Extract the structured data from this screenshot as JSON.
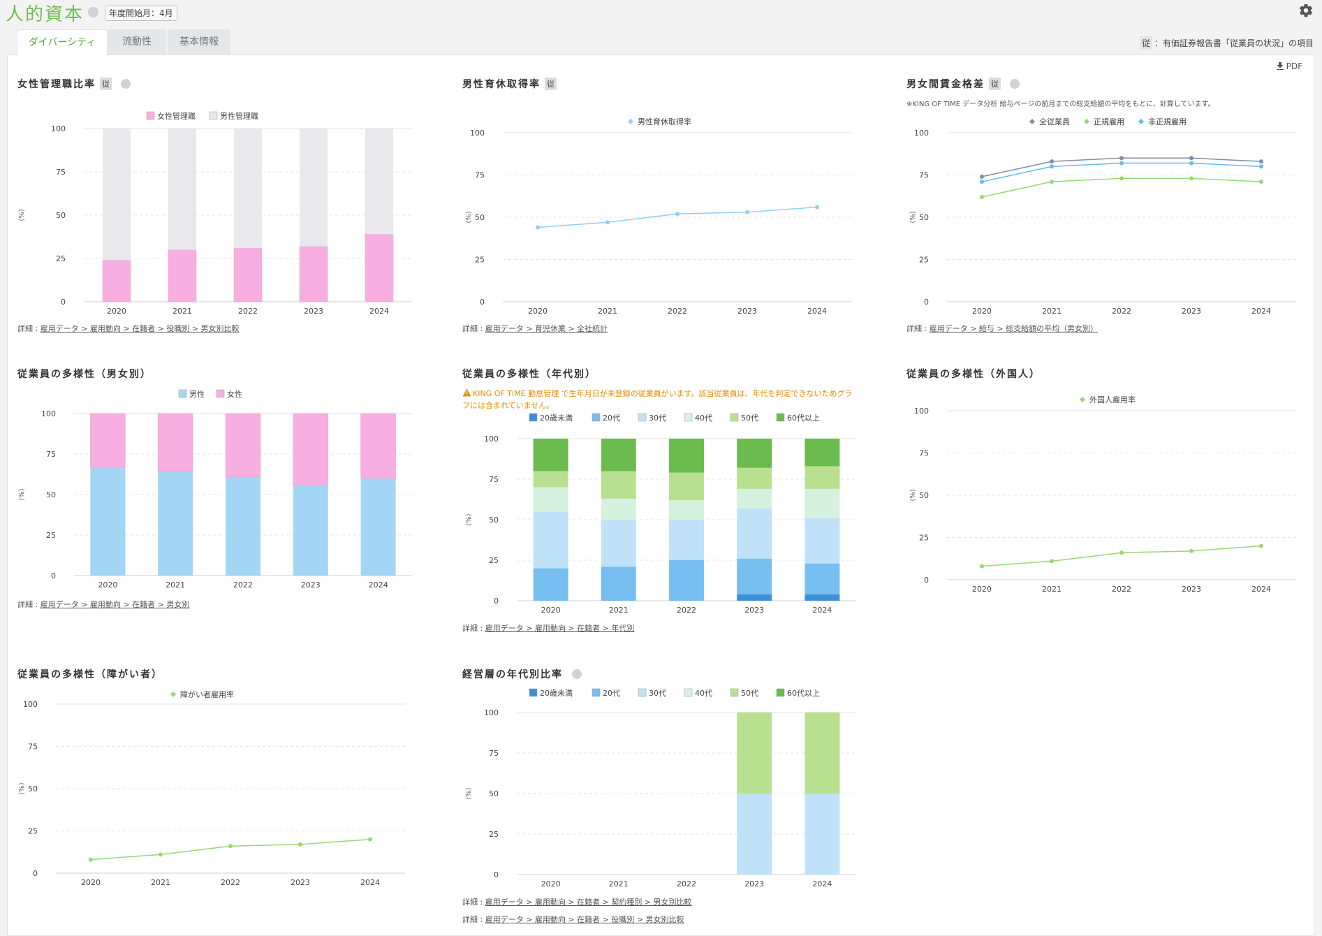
{
  "app": {
    "title": "人的資本",
    "fiscal_start": "年度開始月：4月"
  },
  "tabs": [
    {
      "label": "ダイバーシティ",
      "active": true
    },
    {
      "label": "流動性",
      "active": false
    },
    {
      "label": "基本情報",
      "active": false
    }
  ],
  "legend_note": {
    "tag": "従",
    "text": "：有価証券報告書「従業員の状況」の項目"
  },
  "pdf_label": "PDF",
  "tag_ju": "従",
  "warning_text": "KING OF TIME 勤怠管理 で生年月日が未登録の従業員がいます。該当従業員は、年代を判定できないためグラフには含まれていません。",
  "wage_note": "※KING OF TIME データ分析 給与ページの前月までの総支給額の平均をもとに、計算しています。",
  "details": {
    "d1": {
      "prefix": "詳細 : ",
      "link": "雇用データ > 雇用動向 > 在籍者 > 役職別 > 男女別比較"
    },
    "d2": {
      "prefix": "詳細 : ",
      "link": "雇用データ > 育児休業 > 全社統計"
    },
    "d3": {
      "prefix": "詳細 : ",
      "link": "雇用データ > 給与 > 総支給額の平均（男女別）"
    },
    "d4": {
      "prefix": "詳細 : ",
      "link": "雇用データ > 雇用動向 > 在籍者 > 男女別"
    },
    "d5": {
      "prefix": "詳細 : ",
      "link": "雇用データ > 雇用動向 > 在籍者 > 年代別"
    },
    "d8a": {
      "prefix": "詳細 : ",
      "link": "雇用データ > 雇用動向 > 在籍者 > 契約種別 > 男女別比較"
    },
    "d8b": {
      "prefix": "詳細 : ",
      "link": "雇用データ > 雇用動向 > 在籍者 > 役職別 > 男女別比較"
    }
  },
  "chart_data": [
    {
      "id": "c1",
      "type": "bar",
      "stacked": true,
      "title": "女性管理職比率",
      "categories": [
        "2020",
        "2021",
        "2022",
        "2023",
        "2024"
      ],
      "ylabel": "(%)",
      "ylim": [
        0,
        100
      ],
      "yticks": [
        0,
        25,
        50,
        75,
        100
      ],
      "legend_position": "top",
      "series": [
        {
          "name": "女性管理職",
          "color": "#f7aee0",
          "values": [
            24,
            30,
            31,
            32,
            39
          ]
        },
        {
          "name": "男性管理職",
          "color": "#e9e9ec",
          "values": [
            76,
            70,
            69,
            68,
            61
          ]
        }
      ]
    },
    {
      "id": "c2",
      "type": "line",
      "title": "男性育休取得率",
      "categories": [
        "2020",
        "2021",
        "2022",
        "2023",
        "2024"
      ],
      "ylabel": "(%)",
      "ylim": [
        0,
        100
      ],
      "yticks": [
        0,
        25,
        50,
        75,
        100
      ],
      "legend_position": "top",
      "series": [
        {
          "name": "男性育休取得率",
          "color": "#8fd0f3",
          "values": [
            44,
            47,
            52,
            53,
            56
          ]
        }
      ]
    },
    {
      "id": "c3",
      "type": "line",
      "title": "男女間賃金格差",
      "categories": [
        "2020",
        "2021",
        "2022",
        "2023",
        "2024"
      ],
      "ylabel": "(%)",
      "ylim": [
        0,
        100
      ],
      "yticks": [
        0,
        25,
        50,
        75,
        100
      ],
      "legend_position": "top",
      "series": [
        {
          "name": "全従業員",
          "color": "#7f8ea6",
          "values": [
            74,
            83,
            85,
            85,
            83
          ]
        },
        {
          "name": "正規雇用",
          "color": "#96d877",
          "values": [
            62,
            71,
            73,
            73,
            71
          ]
        },
        {
          "name": "非正規雇用",
          "color": "#66baf0",
          "values": [
            71,
            80,
            82,
            82,
            80
          ]
        }
      ]
    },
    {
      "id": "c4",
      "type": "bar",
      "stacked": true,
      "title": "従業員の多様性（男女別）",
      "categories": [
        "2020",
        "2021",
        "2022",
        "2023",
        "2024"
      ],
      "ylabel": "(%)",
      "ylim": [
        0,
        100
      ],
      "yticks": [
        0,
        25,
        50,
        75,
        100
      ],
      "legend_position": "top",
      "series": [
        {
          "name": "男性",
          "color": "#a2d6f4",
          "values": [
            67,
            64,
            61,
            56,
            60
          ]
        },
        {
          "name": "女性",
          "color": "#f7aee0",
          "values": [
            33,
            36,
            39,
            44,
            40
          ]
        }
      ]
    },
    {
      "id": "c5",
      "type": "bar",
      "stacked": true,
      "title": "従業員の多様性（年代別）",
      "categories": [
        "2020",
        "2021",
        "2022",
        "2023",
        "2024"
      ],
      "ylabel": "(%)",
      "ylim": [
        0,
        100
      ],
      "yticks": [
        0,
        25,
        50,
        75,
        100
      ],
      "legend_position": "top",
      "series": [
        {
          "name": "20歳未満",
          "color": "#3f8fd6",
          "values": [
            0,
            0,
            0,
            4,
            4
          ]
        },
        {
          "name": "20代",
          "color": "#76bff0",
          "values": [
            20,
            21,
            25,
            22,
            19
          ]
        },
        {
          "name": "30代",
          "color": "#bfe2f8",
          "values": [
            35,
            29,
            25,
            31,
            28
          ]
        },
        {
          "name": "40代",
          "color": "#d6f2df",
          "values": [
            15,
            13,
            12,
            12,
            18
          ]
        },
        {
          "name": "50代",
          "color": "#b9e090",
          "values": [
            10,
            17,
            17,
            13,
            14
          ]
        },
        {
          "name": "60代以上",
          "color": "#6bbb4e",
          "values": [
            20,
            20,
            21,
            18,
            17
          ]
        }
      ]
    },
    {
      "id": "c6",
      "type": "line",
      "title": "従業員の多様性（外国人）",
      "categories": [
        "2020",
        "2021",
        "2022",
        "2023",
        "2024"
      ],
      "ylabel": "(%)",
      "ylim": [
        0,
        100
      ],
      "yticks": [
        0,
        25,
        50,
        75,
        100
      ],
      "legend_position": "top",
      "series": [
        {
          "name": "外国人雇用率",
          "color": "#96d877",
          "values": [
            8,
            11,
            16,
            17,
            20
          ]
        }
      ]
    },
    {
      "id": "c7",
      "type": "line",
      "title": "従業員の多様性（障がい者）",
      "categories": [
        "2020",
        "2021",
        "2022",
        "2023",
        "2024"
      ],
      "ylabel": "(%)",
      "ylim": [
        0,
        100
      ],
      "yticks": [
        0,
        25,
        50,
        75,
        100
      ],
      "legend_position": "top",
      "series": [
        {
          "name": "障がい者雇用率",
          "color": "#96d877",
          "values": [
            8,
            11,
            16,
            17,
            20
          ]
        }
      ]
    },
    {
      "id": "c8",
      "type": "bar",
      "stacked": true,
      "title": "経営層の年代別比率",
      "categories": [
        "2020",
        "2021",
        "2022",
        "2023",
        "2024"
      ],
      "ylabel": "(%)",
      "ylim": [
        0,
        100
      ],
      "yticks": [
        0,
        25,
        50,
        75,
        100
      ],
      "legend_position": "top",
      "series": [
        {
          "name": "20歳未満",
          "color": "#3f8fd6",
          "values": [
            0,
            0,
            0,
            0,
            0
          ]
        },
        {
          "name": "20代",
          "color": "#76bff0",
          "values": [
            0,
            0,
            0,
            0,
            0
          ]
        },
        {
          "name": "30代",
          "color": "#bfe2f8",
          "values": [
            0,
            0,
            0,
            50,
            50
          ]
        },
        {
          "name": "40代",
          "color": "#d6f2df",
          "values": [
            0,
            0,
            0,
            0,
            0
          ]
        },
        {
          "name": "50代",
          "color": "#b9e090",
          "values": [
            0,
            0,
            0,
            50,
            50
          ]
        },
        {
          "name": "60代以上",
          "color": "#6bbb4e",
          "values": [
            0,
            0,
            0,
            0,
            0
          ]
        }
      ]
    }
  ]
}
